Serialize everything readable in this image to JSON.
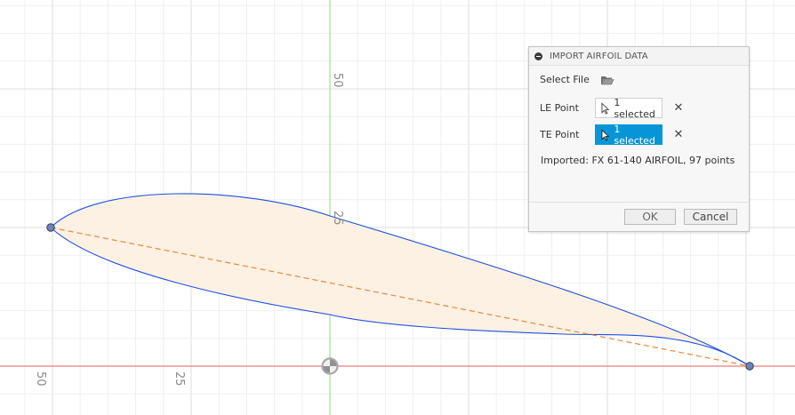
{
  "viewport": {
    "axis_labels_vertical": [
      "50",
      "25"
    ],
    "axis_labels_horizontal": [
      "50",
      "25"
    ]
  },
  "airfoil": {
    "name": "FX 61-140 AIRFOIL",
    "fill_color": "#fdf1e3",
    "outline_color": "#1f4fe0",
    "chord_line_color": "#e8873a"
  },
  "dialog": {
    "title": "IMPORT AIRFOIL DATA",
    "select_file_label": "Select File",
    "le_point_label": "LE Point",
    "le_point_value": "1 selected",
    "te_point_label": "TE Point",
    "te_point_value": "1 selected",
    "info": "Imported: FX 61-140 AIRFOIL, 97 points",
    "ok_label": "OK",
    "cancel_label": "Cancel",
    "accent_color": "#0696d7"
  }
}
